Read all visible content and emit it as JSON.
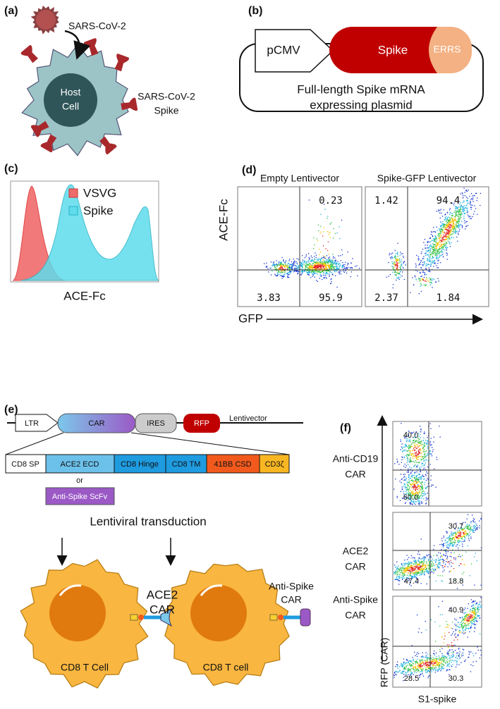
{
  "a": {
    "label": "(a)",
    "virus": "SARS-CoV-2",
    "cell": [
      "Host",
      "Cell"
    ],
    "spike": [
      "SARS-CoV-2",
      "Spike"
    ]
  },
  "b": {
    "label": "(b)",
    "promoter": "pCMV",
    "gene": "Spike",
    "tag": "ERRS",
    "caption": [
      "Full-length Spike mRNA",
      "expressing plasmid"
    ]
  },
  "c": {
    "label": "(c)",
    "legend": [
      "VSVG",
      "Spike"
    ],
    "xlabel": "ACE-Fc"
  },
  "d": {
    "label": "(d)",
    "ylabel": "ACE-Fc",
    "xlabel": "GFP",
    "plots": [
      {
        "title": "Empty Lentivector",
        "upper_right": "0.23",
        "lower_left": "3.83",
        "lower_right": "95.9"
      },
      {
        "title": "Spike-GFP Lentivector",
        "upper_left": "1.42",
        "upper_right": "94.4",
        "lower_left": "2.37",
        "lower_right": "1.84"
      }
    ]
  },
  "e": {
    "label": "(e)",
    "vector": [
      "LTR",
      "CAR",
      "IRES",
      "RFP"
    ],
    "vector_name": "Lentivector",
    "domains": [
      "CD8 SP",
      "ACE2 ECD",
      "CD8 Hinge",
      "CD8 TM",
      "41BB CSD",
      "CD3ζ"
    ],
    "or": "or",
    "alternative": "Anti-Spike ScFv",
    "step": "Lentiviral transduction",
    "cells": [
      {
        "name": "CD8 T Cell",
        "receptor": [
          "ACE2",
          "CAR"
        ]
      },
      {
        "name": "CD8 T cell",
        "receptor": [
          "Anti-Spike",
          "CAR"
        ]
      }
    ]
  },
  "f": {
    "label": "(f)",
    "ylabel": "RFP (CAR)",
    "xlabel": "S1-spike",
    "plots": [
      {
        "name": [
          "Anti-CD19",
          "CAR"
        ],
        "upper_left": "40.0",
        "lower_left": "60.0"
      },
      {
        "name": [
          "ACE2",
          "CAR"
        ],
        "upper_right": "30.7",
        "lower_left": "47.4",
        "lower_right": "18.8"
      },
      {
        "name": [
          "Anti-Spike",
          "CAR"
        ],
        "upper_right": "40.9",
        "lower_left": "28.5",
        "lower_right": "30.3"
      }
    ]
  }
}
